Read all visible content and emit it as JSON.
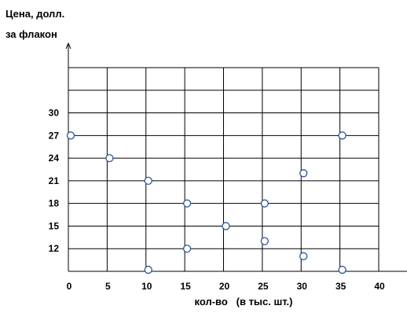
{
  "chart_data": {
    "type": "scatter",
    "ylabel_lines": [
      "Цена, долл.",
      "за флакон"
    ],
    "xlabel": "кол-во   (в тыс. шт.)",
    "x_ticks": [
      0,
      5,
      10,
      15,
      20,
      25,
      30,
      35,
      40
    ],
    "y_ticks": [
      12,
      15,
      18,
      21,
      24,
      27,
      30
    ],
    "xlim": [
      0,
      40
    ],
    "ylim": [
      9,
      36
    ],
    "grid": true,
    "point_color": "#2F5597",
    "points": [
      {
        "x": 0,
        "y": 27
      },
      {
        "x": 5,
        "y": 24
      },
      {
        "x": 10,
        "y": 21
      },
      {
        "x": 10,
        "y": 9.2
      },
      {
        "x": 15,
        "y": 18
      },
      {
        "x": 15,
        "y": 12
      },
      {
        "x": 20,
        "y": 15
      },
      {
        "x": 25,
        "y": 18
      },
      {
        "x": 25,
        "y": 13
      },
      {
        "x": 30,
        "y": 22
      },
      {
        "x": 30,
        "y": 11
      },
      {
        "x": 35,
        "y": 27
      },
      {
        "x": 35,
        "y": 9.2
      }
    ]
  }
}
